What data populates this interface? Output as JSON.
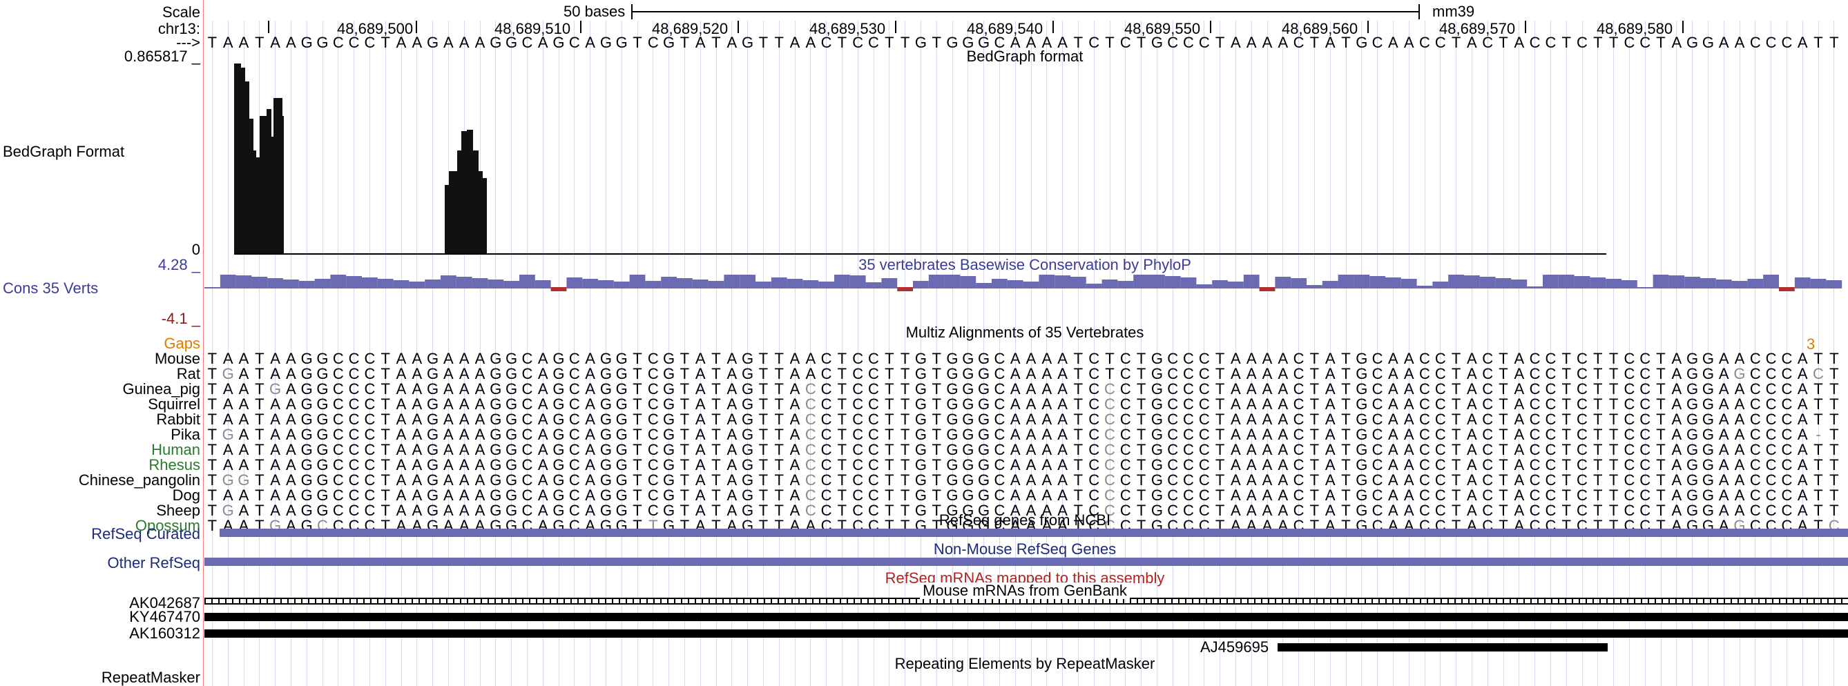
{
  "ruler": {
    "scale_label": "Scale",
    "scale_value": "50 bases",
    "assembly": "mm39",
    "chrom_label": "chr13:",
    "arrow_label": "--->",
    "positions": [
      "48,689,500",
      "48,689,510",
      "48,689,520",
      "48,689,530",
      "48,689,540",
      "48,689,550",
      "48,689,560",
      "48,689,570",
      "48,689,580"
    ]
  },
  "reference_sequence": "TAATAAGGCCCTAAGAAAGGCAGCAGGTCGTATAGTTAACTCCTTGTGGGCAAAATCTCTGCCCTAAAACTATGCAACCTACTACCTCTTCCTAGGAACCCATT",
  "bedgraph": {
    "label": "BedGraph Format",
    "title": "BedGraph format",
    "max": "0.865817 _",
    "min": "0"
  },
  "conservation": {
    "label": "Cons 35 Verts",
    "title": "35 vertebrates Basewise Conservation by PhyloP",
    "max": "4.28 _",
    "min": "-4.1 _",
    "color": "#6b6bb3"
  },
  "multiz": {
    "title": "Multiz Alignments of 35 Vertebrates",
    "gaps_label": "Gaps",
    "gaps_count": "3",
    "species": [
      {
        "name": "Mouse",
        "color": "#000000",
        "seq": "TAATAAGGCCCTAAGAAAGGCAGCAGGTCGTATAGTTAACTCCTTGTGGGCAAAATCTCTGCCCTAAAACTATGCAACCTACTACCTCTTCCTAGGAACCCATT"
      },
      {
        "name": "Rat",
        "color": "#000000",
        "seq": "TGATAAGGCCCTAAGAAAGGCAGCAGGTCGTATAGTTAACTCCTTGTGGGCAAAATCTCTGCCCTAAAACTATGCAACCTACTACCTCTTCCTAGGAGCCCACT"
      },
      {
        "name": "Guinea_pig",
        "color": "#000000",
        "seq": "TAATGAGGCCCTAAGAAAGGCAGCAGGTCGTATAGTTACCTCCTTGTGGGCAAAATCCCTGCCCTAAAACTATGCAACCTACTACCTCTTCCTAGGAACCCATT"
      },
      {
        "name": "Squirrel",
        "color": "#000000",
        "seq": "TAATAAGGCCCTAAGAAAGGCAGCAGGTCGTATAGTTACCTCCTTGTGGGCAAAATCCCTGCCCTAAAACTATGCAACCTACTACCTCTTCCTAGGAACCCATT"
      },
      {
        "name": "Rabbit",
        "color": "#000000",
        "seq": "TAATAAGGCCCTAAGAAAGGCAGCAGGTCGTATAGTTACCTCCTTGTGGGCAAAATCCCTGCCCTAAAACTATGCAACCTACTACCTCTTCCTAGGAACCCATT"
      },
      {
        "name": "Pika",
        "color": "#000000",
        "seq": "TGATAAGGCCCTAAGAAAGGCAGCAGGTCGTATAGTTACCTCCTTGTGGGCAAAATCCCTGCCCTAAAACTATGCAACCTACTACCTCTTCCTAGGAACCCA-T"
      },
      {
        "name": "Human",
        "color": "#2a7a2a",
        "seq": "TAATAAGGCCCTAAGAAAGGCAGCAGGTCGTATAGTTACCTCCTTGTGGGCAAAATCCCTGCCCTAAAACTATGCAACCTACTACCTCTTCCTAGGAACCCATT"
      },
      {
        "name": "Rhesus",
        "color": "#2a7a2a",
        "seq": "TAATAAGGCCCTAAGAAAGGCAGCAGGTCGTATAGTTACCTCCTTGTGGGCAAAATCCCTGCCCTAAAACTATGCAACCTACTACCTCTTCCTAGGAACCCATT"
      },
      {
        "name": "Chinese_pangolin",
        "color": "#000000",
        "seq": "TGGTAAGGCCCTAAGAAAGGCAGCAGGTCGTATAGTTACCTCCTTGTGGGCAAAATCCCTGCCCTAAAACTATGCAACCTACTACCTCTTCCTAGGAACCCATT"
      },
      {
        "name": "Dog",
        "color": "#000000",
        "seq": "TAATAAGGCCCTAAGAAAGGCAGCAGGTCGTATAGTTACCTCCTTGTGGGCAAAATCCCTGCCCTAAAACTATGCAACCTACTACCTCTTCCTAGGAACCCATT"
      },
      {
        "name": "Sheep",
        "color": "#000000",
        "seq": "TGATAAGGCCCTAAGAAAGGCAGCAGGTCGTATAGTTACCTCCTTGTGGGCAAAATCCCTGCCCTAAAACTATGCAACCTACTACCTCTTCCTAGGAACCCATT"
      },
      {
        "name": "Opossum",
        "color": "#2a7a2a",
        "seq": "TAATGAGCCCCTAAGAAAGGCAGCAGGTTGTATAGTTAACTCCTTGTGGGCAAAATCCCTGCCCTAAAACTATGCAACCTACTACCTCTTCCTAGGAGCCCATC"
      }
    ]
  },
  "refseq": {
    "title": "RefSeq genes from NCBI",
    "curated_label": "RefSeq Curated",
    "other_title": "Non-Mouse RefSeq Genes",
    "other_label": "Other RefSeq",
    "mrna_title": "RefSeq mRNAs mapped to this assembly",
    "mrna_color": "#b22222"
  },
  "mrnas": {
    "title": "Mouse mRNAs from GenBank",
    "items": [
      "AK042687",
      "KY467470",
      "AK160312",
      "AJ459695"
    ]
  },
  "repeatmasker": {
    "title": "Repeating Elements by RepeatMasker",
    "label": "RepeatMasker"
  }
}
